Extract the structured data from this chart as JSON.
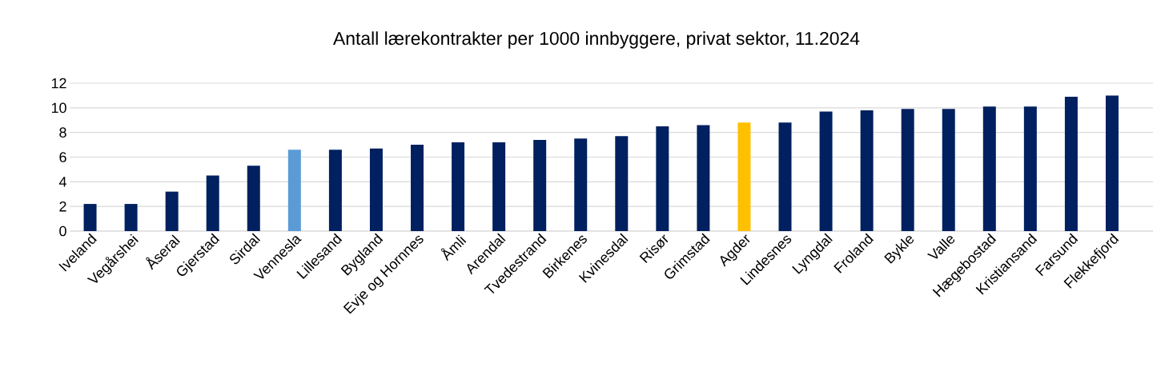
{
  "chart_data": {
    "type": "bar",
    "title": "Antall lærekontrakter per 1000 innbyggere, privat sektor, 11.2024",
    "categories": [
      "Iveland",
      "Vegårshei",
      "Åseral",
      "Gjerstad",
      "Sirdal",
      "Vennesla",
      "Lillesand",
      "Bygland",
      "Evje og Hornnes",
      "Åmli",
      "Arendal",
      "Tvedestrand",
      "Birkenes",
      "Kvinesdal",
      "Risør",
      "Grimstad",
      "Agder",
      "Lindesnes",
      "Lyngdal",
      "Froland",
      "Bykle",
      "Valle",
      "Hægebostad",
      "Kristiansand",
      "Farsund",
      "Flekkefjord"
    ],
    "values": [
      2.2,
      2.2,
      3.2,
      4.5,
      5.3,
      6.6,
      6.6,
      6.7,
      7.0,
      7.2,
      7.2,
      7.4,
      7.5,
      7.7,
      8.5,
      8.6,
      8.8,
      8.8,
      9.7,
      9.8,
      9.9,
      9.9,
      10.1,
      10.1,
      10.9,
      11.0
    ],
    "colors": [
      "#002060",
      "#002060",
      "#002060",
      "#002060",
      "#002060",
      "#5b9bd5",
      "#002060",
      "#002060",
      "#002060",
      "#002060",
      "#002060",
      "#002060",
      "#002060",
      "#002060",
      "#002060",
      "#002060",
      "#ffc000",
      "#002060",
      "#002060",
      "#002060",
      "#002060",
      "#002060",
      "#002060",
      "#002060",
      "#002060",
      "#002060"
    ],
    "ylim": [
      0,
      12
    ],
    "yticks": [
      0,
      2,
      4,
      6,
      8,
      10,
      12
    ],
    "grid": "y"
  }
}
